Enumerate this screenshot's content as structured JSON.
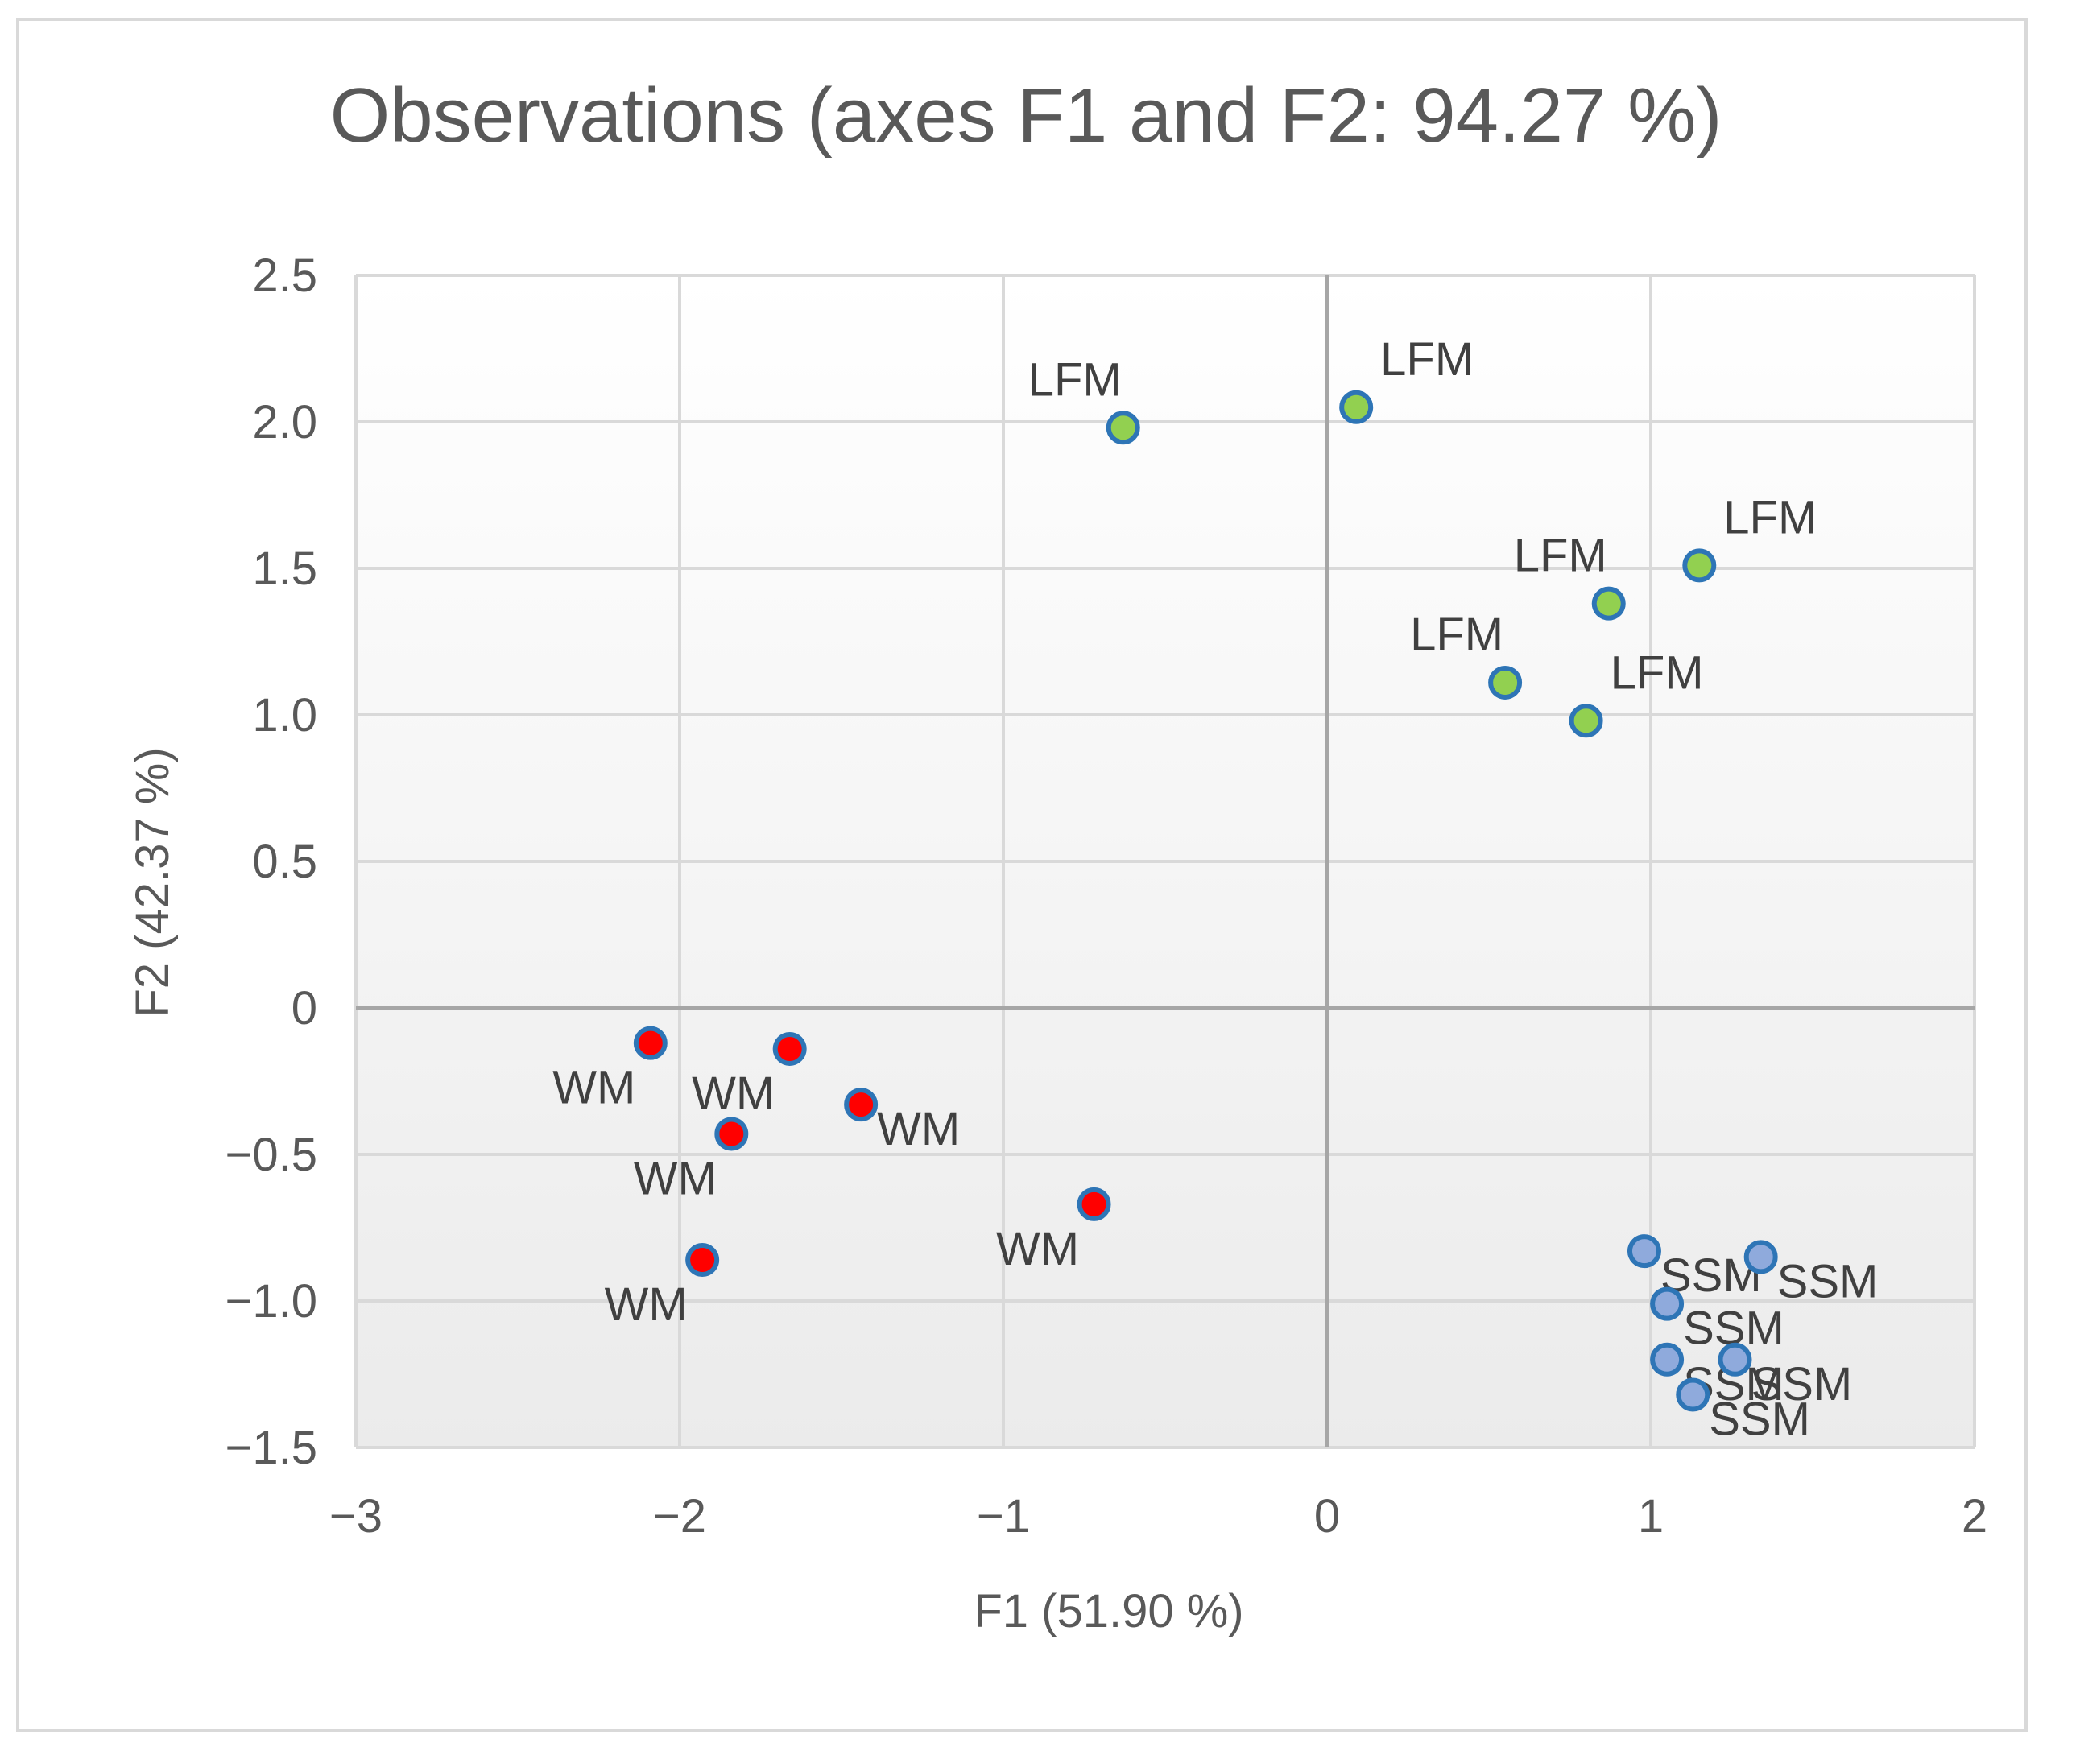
{
  "chart_data": {
    "type": "scatter",
    "title": "Observations (axes F1 and F2: 94.27 %)",
    "xlabel": "F1 (51.90 %)",
    "ylabel": "F2 (42.37 %)",
    "xlim": [
      -3,
      2
    ],
    "ylim": [
      -1.5,
      2.5
    ],
    "x_ticks": [
      -3,
      -2,
      -1,
      0,
      1,
      2
    ],
    "y_ticks": [
      2.5,
      2.0,
      1.5,
      1.0,
      0.5,
      0,
      -0.5,
      -1.0,
      -1.5
    ],
    "x_tick_labels": [
      "−3",
      "−2",
      "−1",
      "0",
      "1",
      "2"
    ],
    "y_tick_labels": [
      "2.5",
      "2.0",
      "1.5",
      "1.0",
      "0.5",
      "0",
      "−0.5",
      "−1.0",
      "−1.5"
    ],
    "grid": true,
    "series": [
      {
        "name": "LFM",
        "color": "#92d050",
        "edge_color": "#2e75b6",
        "points": [
          {
            "x": -0.63,
            "y": 1.98,
            "label": "LFM",
            "pos": "above-left"
          },
          {
            "x": 0.09,
            "y": 2.05,
            "label": "LFM",
            "pos": "above-right"
          },
          {
            "x": 1.15,
            "y": 1.51,
            "label": "LFM",
            "pos": "above-right"
          },
          {
            "x": 0.87,
            "y": 1.38,
            "label": "LFM",
            "pos": "above-left"
          },
          {
            "x": 0.55,
            "y": 1.11,
            "label": "LFM",
            "pos": "above-left"
          },
          {
            "x": 0.8,
            "y": 0.98,
            "label": "LFM",
            "pos": "above-right"
          }
        ]
      },
      {
        "name": "WM",
        "color": "#ff0000",
        "edge_color": "#2e75b6",
        "points": [
          {
            "x": -2.09,
            "y": -0.12,
            "label": "WM",
            "pos": "below-left"
          },
          {
            "x": -1.66,
            "y": -0.14,
            "label": "WM",
            "pos": "below-left"
          },
          {
            "x": -1.44,
            "y": -0.33,
            "label": "WM",
            "pos": "below-right"
          },
          {
            "x": -1.84,
            "y": -0.43,
            "label": "WM",
            "pos": "below-left"
          },
          {
            "x": -0.72,
            "y": -0.67,
            "label": "WM",
            "pos": "below-left"
          },
          {
            "x": -1.93,
            "y": -0.86,
            "label": "WM",
            "pos": "below-left"
          }
        ]
      },
      {
        "name": "SSM",
        "color": "#8faadc",
        "edge_color": "#2e75b6",
        "points": [
          {
            "x": 0.98,
            "y": -0.83,
            "label": "SSM",
            "pos": "below-right"
          },
          {
            "x": 1.34,
            "y": -0.85,
            "label": "SSM",
            "pos": "below-right"
          },
          {
            "x": 1.05,
            "y": -1.01,
            "label": "SSM",
            "pos": "below-right"
          },
          {
            "x": 1.05,
            "y": -1.2,
            "label": "SSM",
            "pos": "below-right"
          },
          {
            "x": 1.26,
            "y": -1.2,
            "label": "SSM",
            "pos": "below-right"
          },
          {
            "x": 1.13,
            "y": -1.32,
            "label": "SSM",
            "pos": "below-right"
          }
        ]
      }
    ]
  }
}
